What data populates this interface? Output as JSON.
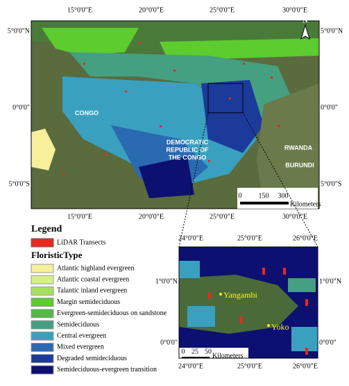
{
  "main_map": {
    "top_labels": [
      "15°0'0\"E",
      "20°0'0\"E",
      "25°0'0\"E",
      "30°0'0\"E"
    ],
    "bottom_labels": [
      "15°0'0\"E",
      "20°0'0\"E",
      "25°0'0\"E",
      "30°0'0\"E"
    ],
    "left_labels": [
      "5°0'0\"N",
      "0°0'0\"",
      "5°0'0\"S"
    ],
    "right_labels": [
      "5°0'0\"N",
      "0°0'0\"",
      "5°0'0\"S"
    ],
    "places": [
      "CONGO",
      "DEMOCRATIC",
      "REPUBLIC OF",
      "THE CONGO",
      "RWANDA",
      "BURUNDI"
    ],
    "scale": [
      "0",
      "150",
      "300"
    ],
    "scale_unit": "Kilometers",
    "north": "N"
  },
  "inset_map": {
    "top_labels": [
      "24°0'0\"E",
      "25°0'0\"E",
      "26°0'0\"E"
    ],
    "bottom_labels": [
      "24°0'0\"E",
      "25°0'0\"E",
      "26°0'0\"E"
    ],
    "left_labels": [
      "1°0'0\"N",
      "0°0'0\""
    ],
    "right_labels": [
      "1°0'0\"N",
      "0°0'0\""
    ],
    "places": [
      "Yangambi",
      "Yoko"
    ],
    "scale": [
      "0",
      "25",
      "50"
    ],
    "scale_unit": "Kilometers"
  },
  "legend": {
    "title": "Legend",
    "lidar": {
      "label": "LiDAR Transects",
      "color": "#e8281e"
    },
    "floristic_title": "FloristicType",
    "items": [
      {
        "label": "Atlantic highland evergreen",
        "color": "#f6f09a"
      },
      {
        "label": "Atlantic coastal evergreen",
        "color": "#d6f08a"
      },
      {
        "label": "Talantic inland evergreen",
        "color": "#a6e05e"
      },
      {
        "label": "Margin semideciduous",
        "color": "#5ccc2e"
      },
      {
        "label": "Evergreen-semideciduous on sandstone",
        "color": "#55b84a"
      },
      {
        "label": "Semideciduous",
        "color": "#44a080"
      },
      {
        "label": "Central evergreen",
        "color": "#3aa0c0"
      },
      {
        "label": "Mixed evergreen",
        "color": "#2a6ab0"
      },
      {
        "label": "Degraded semideciduous",
        "color": "#1c3a9a"
      },
      {
        "label": "Semideciduous-evergreen transition",
        "color": "#0c1070"
      }
    ]
  }
}
